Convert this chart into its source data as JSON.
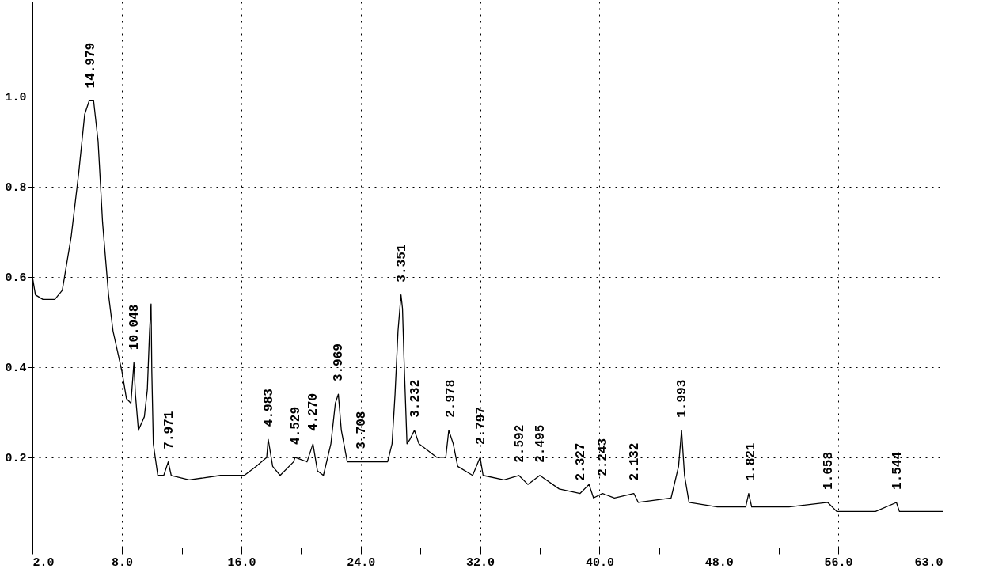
{
  "chart_data": {
    "type": "line",
    "x": [
      2.0,
      2.2,
      2.7,
      3.5,
      4.0,
      4.2,
      4.6,
      5.1,
      5.5,
      5.8,
      6.1,
      6.4,
      6.7,
      7.1,
      7.4,
      8.0,
      8.3,
      8.6,
      8.8,
      8.9,
      9.1,
      9.5,
      9.7,
      9.85,
      9.95,
      10.0,
      10.1,
      10.4,
      10.8,
      11.1,
      11.3,
      12.5,
      14.6,
      16.2,
      17.0,
      17.7,
      17.8,
      18.1,
      18.6,
      19.5,
      19.6,
      20.4,
      20.8,
      21.1,
      21.5,
      22.0,
      22.3,
      22.5,
      22.7,
      23.1,
      24.1,
      25.2,
      25.8,
      26.1,
      26.3,
      26.5,
      26.7,
      26.8,
      26.9,
      27.1,
      27.3,
      27.6,
      27.9,
      29.1,
      29.7,
      29.9,
      30.2,
      30.5,
      31.5,
      32.0,
      32.2,
      33.6,
      34.6,
      35.2,
      36.0,
      37.3,
      38.7,
      39.3,
      39.6,
      40.2,
      41.0,
      42.3,
      42.6,
      44.8,
      45.3,
      45.5,
      45.7,
      46.0,
      47.9,
      49.8,
      50.0,
      50.2,
      52.7,
      55.3,
      55.9,
      58.5,
      59.9,
      60.1,
      63.0
    ],
    "series": [
      {
        "color": "#000000",
        "values": [
          0.6,
          0.56,
          0.55,
          0.55,
          0.57,
          0.61,
          0.69,
          0.83,
          0.96,
          0.99,
          0.99,
          0.9,
          0.72,
          0.56,
          0.48,
          0.39,
          0.33,
          0.32,
          0.41,
          0.34,
          0.26,
          0.29,
          0.35,
          0.48,
          0.54,
          0.39,
          0.23,
          0.16,
          0.16,
          0.19,
          0.16,
          0.15,
          0.16,
          0.16,
          0.18,
          0.2,
          0.24,
          0.18,
          0.16,
          0.19,
          0.2,
          0.19,
          0.23,
          0.17,
          0.16,
          0.23,
          0.32,
          0.34,
          0.26,
          0.19,
          0.19,
          0.19,
          0.19,
          0.23,
          0.34,
          0.48,
          0.56,
          0.53,
          0.42,
          0.23,
          0.24,
          0.26,
          0.23,
          0.2,
          0.2,
          0.26,
          0.23,
          0.18,
          0.16,
          0.2,
          0.16,
          0.15,
          0.16,
          0.14,
          0.16,
          0.13,
          0.12,
          0.14,
          0.11,
          0.12,
          0.11,
          0.12,
          0.1,
          0.11,
          0.18,
          0.26,
          0.16,
          0.1,
          0.09,
          0.09,
          0.12,
          0.09,
          0.09,
          0.1,
          0.08,
          0.08,
          0.1,
          0.08,
          0.08
        ]
      }
    ],
    "xlim": [
      2.0,
      63.0
    ],
    "xticks": [
      {
        "value": 2,
        "label": "2.0"
      },
      {
        "value": 4,
        "label": null
      },
      {
        "value": 8,
        "label": "8.0"
      },
      {
        "value": 12,
        "label": null
      },
      {
        "value": 16,
        "label": "16.0"
      },
      {
        "value": 20,
        "label": null
      },
      {
        "value": 24,
        "label": "24.0"
      },
      {
        "value": 28,
        "label": null
      },
      {
        "value": 32,
        "label": "32.0"
      },
      {
        "value": 36,
        "label": null
      },
      {
        "value": 40,
        "label": "40.0"
      },
      {
        "value": 44,
        "label": null
      },
      {
        "value": 48,
        "label": "48.0"
      },
      {
        "value": 52,
        "label": null
      },
      {
        "value": 56,
        "label": "56.0"
      },
      {
        "value": 60,
        "label": null
      },
      {
        "value": 63,
        "label": "63.0"
      }
    ],
    "ylim": [
      0,
      1.21
    ],
    "yticks": [
      0.2,
      0.4,
      0.6,
      0.8,
      {
        "value": 1.0,
        "label": "1.0"
      }
    ],
    "grid": true,
    "line_style": "solid",
    "marker": "none",
    "annotations": [
      {
        "text": "14.979",
        "x": 5.86,
        "y": 0.99
      },
      {
        "text": "10.048",
        "x": 8.8,
        "y": 0.41
      },
      {
        "text": "7.971",
        "x": 11.1,
        "y": 0.19
      },
      {
        "text": "4.983",
        "x": 17.8,
        "y": 0.24
      },
      {
        "text": "4.529",
        "x": 19.6,
        "y": 0.2
      },
      {
        "text": "4.270",
        "x": 20.8,
        "y": 0.23
      },
      {
        "text": "3.969",
        "x": 22.5,
        "y": 0.34
      },
      {
        "text": "3.708",
        "x": 24.0,
        "y": 0.19
      },
      {
        "text": "3.351",
        "x": 26.7,
        "y": 0.56
      },
      {
        "text": "3.232",
        "x": 27.6,
        "y": 0.26
      },
      {
        "text": "2.978",
        "x": 30.0,
        "y": 0.26
      },
      {
        "text": "2.797",
        "x": 32.0,
        "y": 0.2
      },
      {
        "text": "2.592",
        "x": 34.6,
        "y": 0.16
      },
      {
        "text": "2.495",
        "x": 36.0,
        "y": 0.16
      },
      {
        "text": "2.327",
        "x": 38.7,
        "y": 0.12
      },
      {
        "text": "2.243",
        "x": 40.2,
        "y": 0.13
      },
      {
        "text": "2.132",
        "x": 42.3,
        "y": 0.12
      },
      {
        "text": "1.993",
        "x": 45.5,
        "y": 0.26
      },
      {
        "text": "1.821",
        "x": 50.1,
        "y": 0.12
      },
      {
        "text": "1.658",
        "x": 55.3,
        "y": 0.1
      },
      {
        "text": "1.544",
        "x": 59.9,
        "y": 0.1
      }
    ]
  }
}
